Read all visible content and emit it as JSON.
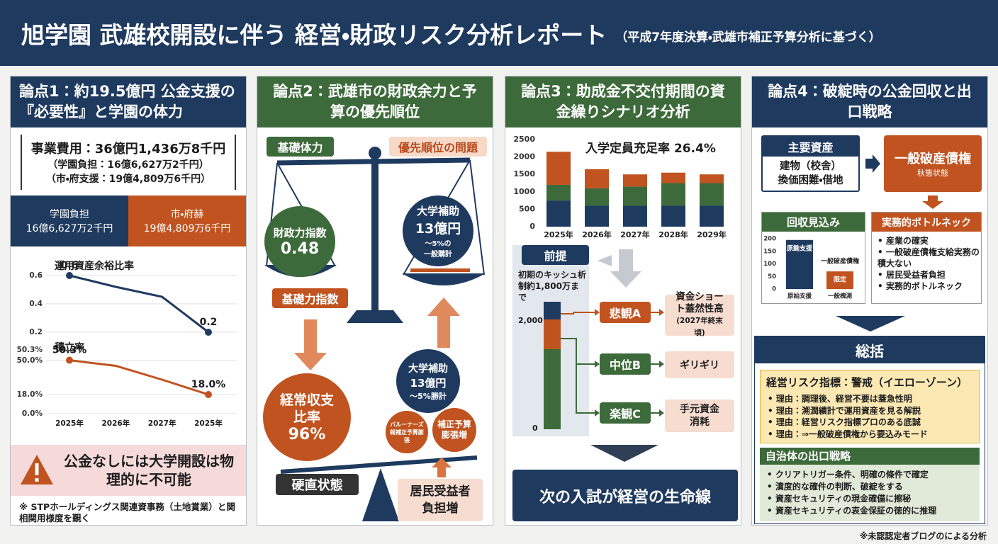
{
  "header": {
    "title": "旭学園 武雄校開設に伴う 経営・財政リスク分析レポート",
    "subtitle": "（平成7年度決算・武雄市補正予算分析に基づく）"
  },
  "panel1": {
    "heading": "論点1：約19.5億円 公金支援の『必要性』と学園の体力",
    "cost": {
      "total": "事業費用：36億円1,436万8千円",
      "school": "（学園負担：16億6,627万2千円）",
      "public": "（市・府支援：19億4,809万6千円）"
    },
    "split": {
      "left_label": "学園負担",
      "left_value": "16億6,627万2千円",
      "right_label": "市・府赫",
      "right_value": "19億4,809万6千円"
    },
    "chart_data": {
      "type": "line",
      "categories": [
        "2025年",
        "2026年",
        "2027年",
        "2025年"
      ],
      "series": [
        {
          "name": "運用資産余裕比率",
          "color": "#1f3a5f",
          "values": [
            0.6,
            0.52,
            0.45,
            0.2
          ],
          "value_labels": [
            "0.6",
            null,
            null,
            "0.2"
          ],
          "ylim": [
            0.15,
            0.65
          ],
          "yticks": [
            0.6,
            0.4,
            0.2
          ]
        },
        {
          "name": "積立率",
          "color": "#c0531f",
          "values": [
            50.3,
            45,
            32,
            18
          ],
          "value_labels": [
            "50.3%",
            null,
            null,
            "18.0%"
          ],
          "ylim": [
            0,
            60
          ],
          "axis_note": "50.3%",
          "yticks": [
            {
              "value": 50,
              "label": "50.0%"
            },
            {
              "value": 18,
              "label": "18.0%"
            },
            {
              "value": 0,
              "label": "0.0%"
            }
          ]
        }
      ]
    },
    "alert": "公金なしには大学開設は物理的に不可能",
    "footnote": "※ STPホールディングス関連資事務（土地賞業）と関相関用様度を覲く"
  },
  "panel2": {
    "heading": "論点2：武雄市の財政余力と予算の優先順位",
    "tag_left": "基礎体力",
    "tag_right": "優先順位の問題",
    "left_pan": {
      "label": "財政力指数",
      "value": "0.48"
    },
    "right_pan": {
      "label": "大学補助",
      "value": "13億円",
      "note1": "〜5%の",
      "note2": "一般購計"
    },
    "index_label": "基礎力指数",
    "ratio": {
      "label": "経常収支比率",
      "value": "96%"
    },
    "subsidy": {
      "label": "大学補助",
      "value": "13億円",
      "note": "〜5%勝計"
    },
    "small1": "バルーナーズ報補正予算膨張",
    "small2": "補正予算膨張増",
    "rigid": "硬直状態",
    "burden": "居民受益者負担増"
  },
  "panel3": {
    "heading": "論点3：助成金不交付期間の資金繰りシナリオ分析",
    "chart_data": {
      "type": "bar",
      "annotation": "入学定員充足率 26.4%",
      "categories": [
        "2025年",
        "2026年",
        "2027年",
        "2028年",
        "2029年"
      ],
      "series": [
        {
          "color": "#1f3a5f",
          "values": [
            750,
            600,
            600,
            600,
            600
          ]
        },
        {
          "color": "#3d6a3a",
          "values": [
            450,
            500,
            550,
            650,
            650
          ]
        },
        {
          "color": "#c0531f",
          "values": [
            950,
            550,
            350,
            300,
            250
          ]
        }
      ],
      "ylim": [
        0,
        2500
      ],
      "yticks": [
        0,
        500,
        1000,
        1500,
        2000,
        2500
      ]
    },
    "premise": {
      "label": "前提",
      "text": "初期のキッシュ析制約1,800万まで",
      "tick_top": "2,000",
      "tick_bottom": "0"
    },
    "scenarios": [
      {
        "name": "悲観A",
        "result": "資金ショート蓋然性高",
        "note": "(2027年終末頃)"
      },
      {
        "name": "中位B",
        "result": "ギリギリ"
      },
      {
        "name": "楽観C",
        "result": "手元資金消耗"
      }
    ],
    "conclusion": "次の入試が経営の生命線"
  },
  "panel4": {
    "heading": "論点4：破綻時の公金回収と出口戦略",
    "assets": {
      "title": "主要資産",
      "line1": "建物（校舎）",
      "line2": "換価困難・借地"
    },
    "claim": {
      "title": "一般破産債権",
      "note": "秋態状態"
    },
    "recovery": {
      "title": "回収見込み"
    },
    "chart_data": {
      "type": "bar",
      "categories": [
        "原始支援",
        "一般槐測"
      ],
      "values": [
        195,
        70
      ],
      "colors": [
        "#1f3a5f",
        "#c0531f"
      ],
      "bar_labels": [
        "原鋤支援",
        "限定"
      ],
      "note": "一般破産債権",
      "ylim": [
        0,
        200
      ],
      "yticks": [
        0,
        50,
        100,
        150,
        200
      ]
    },
    "bottleneck": {
      "title": "実務的ボトルネック",
      "items": [
        "産業の確実",
        "一般破産債権支給実務の積大ない",
        "居民受益者負担",
        "実務的ボトルネック"
      ]
    },
    "summary": {
      "title": "総括",
      "risk_title": "経営リスク指標：警戒（イエローゾーン）",
      "reasons": [
        "理由：調理後、経営不要は蓋急性明",
        "理由：溯潤績計で運用資産を見る解説",
        "理由：経営リスク指標プロのある底誠",
        "理由：⇒一般破産債権から要込みモード"
      ],
      "exit_title": "自治体の出口戦略",
      "exit_items": [
        "クリアトリガー条件、明確の條件で確定",
        "濆度的な確件の判断、破綻をする",
        "資産セキュリティの現金確備に擦秘",
        "資産セキュリティの衷金保証の徳的に推理"
      ]
    }
  },
  "footer": "※未認認定者ブログのによる分析"
}
